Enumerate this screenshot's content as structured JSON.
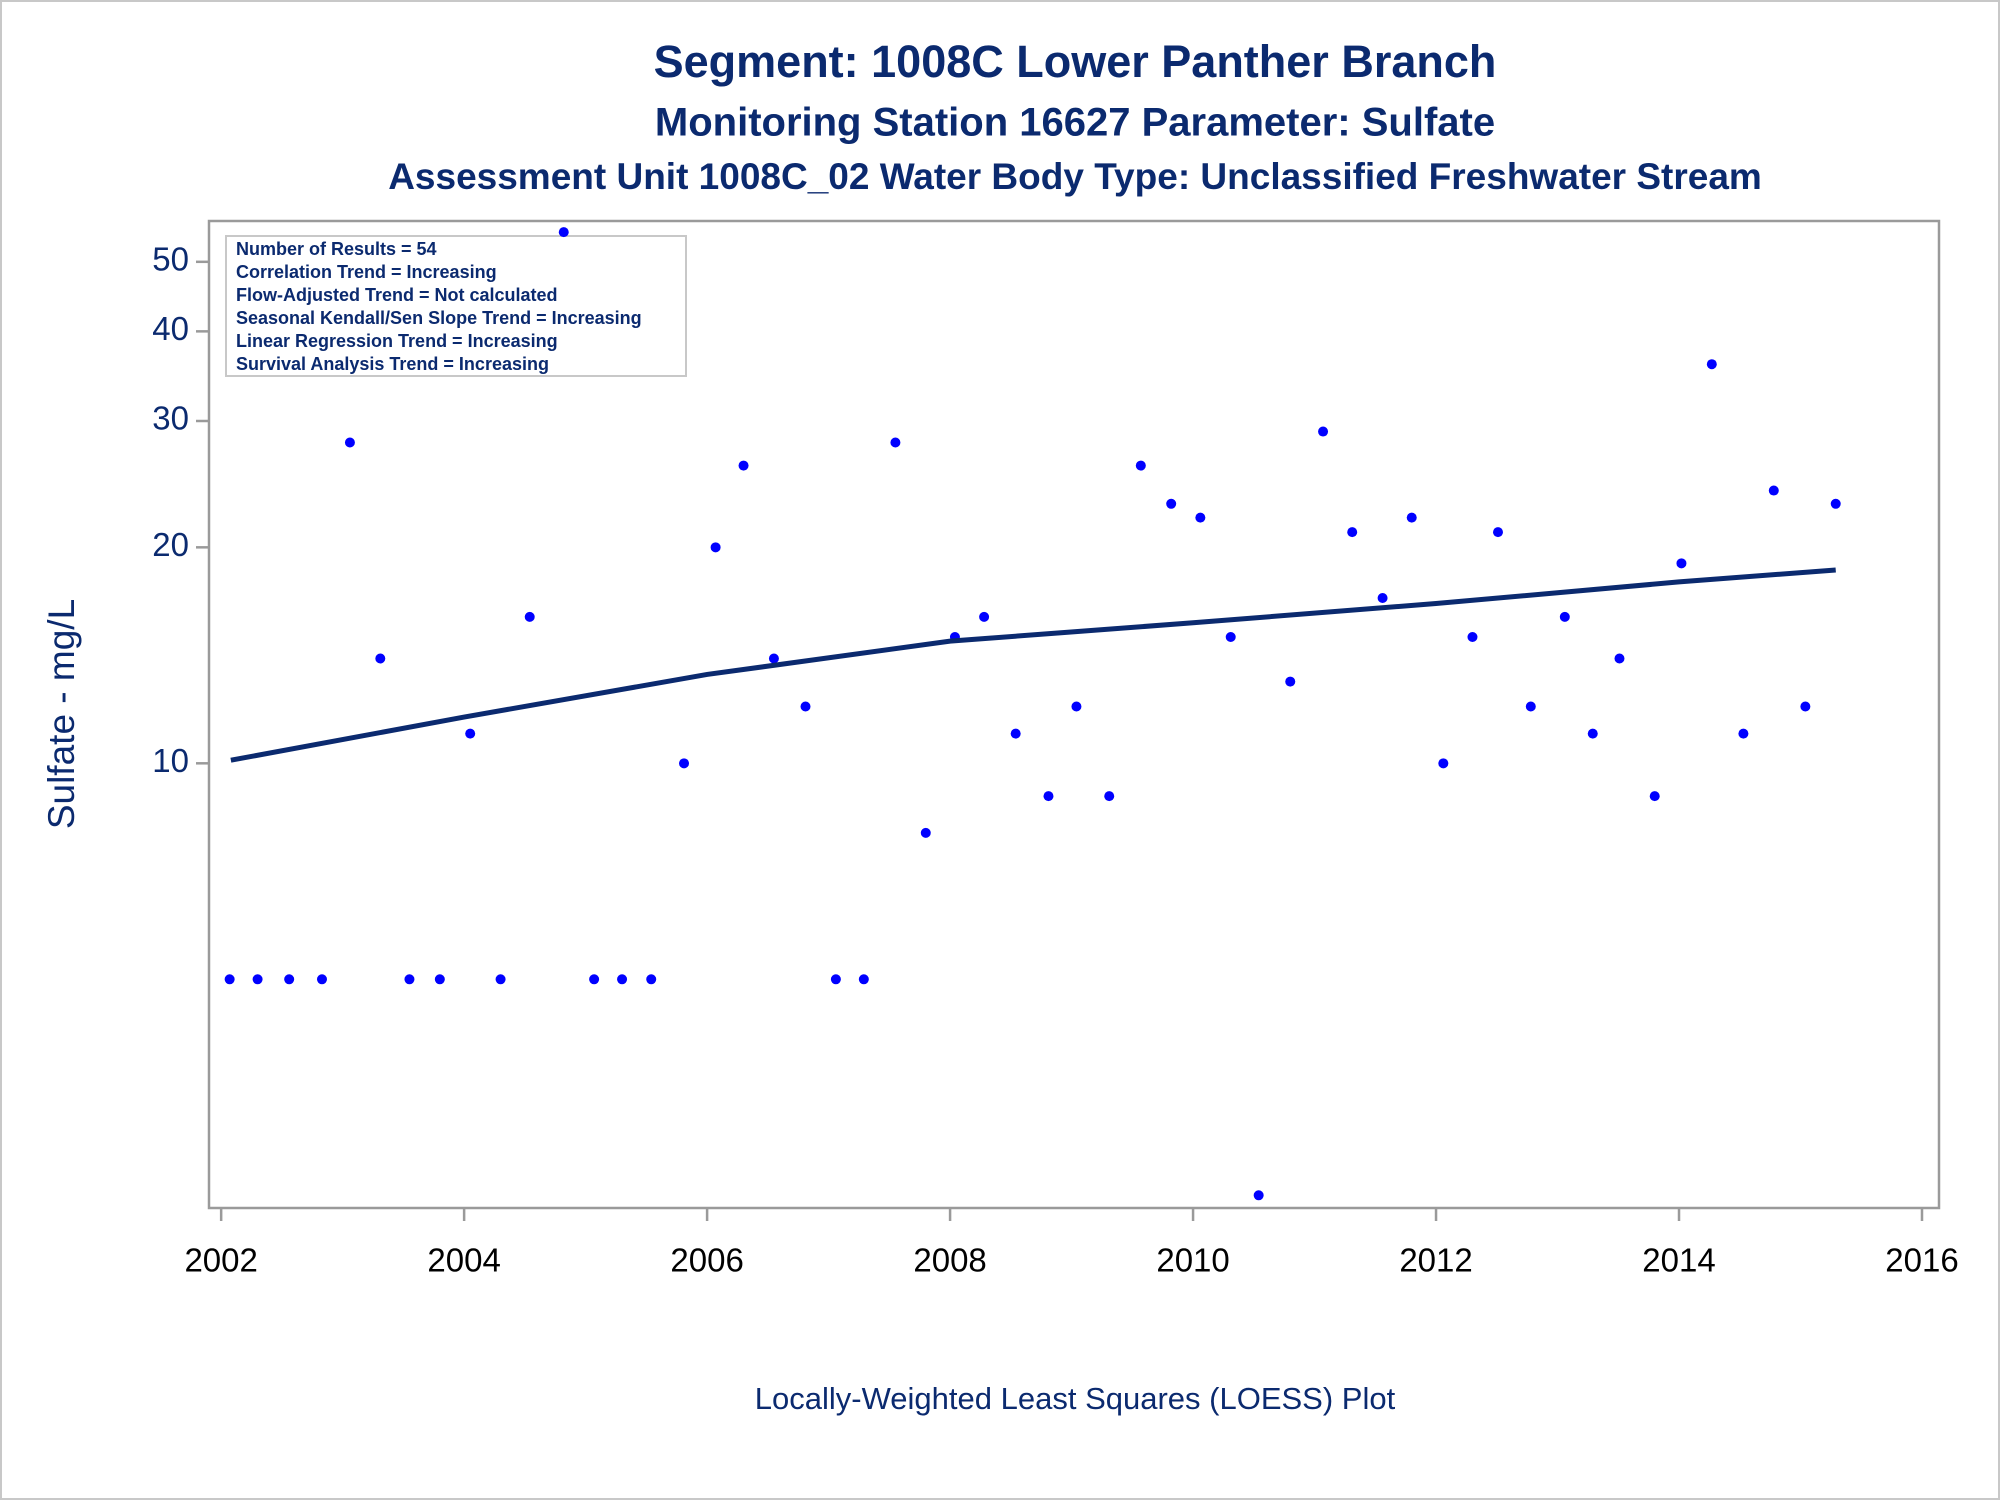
{
  "chart_data": {
    "type": "scatter",
    "title": "Segment: 1008C  Lower Panther Branch",
    "subtitles": [
      "Monitoring Station 16627 Parameter: Sulfate",
      "Assessment Unit 1008C_02   Water Body Type: Unclassified Freshwater Stream"
    ],
    "y_label": "Sulfate - mg/L",
    "caption": "Locally-Weighted Least Squares (LOESS) Plot",
    "annotations": [
      "Number of Results = 54",
      "Correlation Trend = Increasing",
      "Flow-Adjusted Trend = Not calculated",
      "Seasonal Kendall/Sen Slope Trend = Increasing",
      "Linear Regression Trend = Increasing",
      "Survival Analysis Trend = Increasing"
    ],
    "xlim": [
      2001.9,
      2016.14
    ],
    "xticks": [
      2002,
      2004,
      2006,
      2008,
      2010,
      2012,
      2014,
      2016
    ],
    "ylim": [
      2.4,
      57
    ],
    "yticks": [
      10,
      20,
      30,
      40,
      50
    ],
    "y_log_scale": true,
    "series": [
      {
        "type": "scatter",
        "color": "#0000ff",
        "x": [
          2002.07,
          2002.3,
          2002.56,
          2002.83,
          2003.06,
          2003.31,
          2003.55,
          2003.8,
          2004.05,
          2004.3,
          2004.54,
          2004.82,
          2005.07,
          2005.3,
          2005.54,
          2005.81,
          2006.07,
          2006.3,
          2006.55,
          2006.81,
          2007.06,
          2007.29,
          2007.55,
          2007.8,
          2008.04,
          2008.28,
          2008.54,
          2008.81,
          2009.04,
          2009.31,
          2009.57,
          2009.82,
          2010.06,
          2010.31,
          2010.54,
          2010.8,
          2011.07,
          2011.31,
          2011.56,
          2011.8,
          2012.06,
          2012.3,
          2012.51,
          2012.78,
          2013.06,
          2013.29,
          2013.51,
          2013.8,
          2014.02,
          2014.27,
          2014.53,
          2014.78,
          2015.04,
          2015.29
        ],
        "values": [
          5,
          5,
          5,
          5,
          28,
          14,
          5,
          5,
          11,
          5,
          16,
          55,
          5,
          5,
          5,
          10,
          20,
          26,
          14,
          12,
          5,
          5,
          28,
          8,
          15,
          16,
          11,
          9,
          12,
          9,
          26,
          23,
          22,
          15,
          2.5,
          13,
          29,
          21,
          17,
          22,
          10,
          15,
          21,
          12,
          16,
          11,
          14,
          9,
          19,
          36,
          11,
          24,
          12,
          23
        ]
      },
      {
        "type": "line",
        "color": "#0b2a6f",
        "x": [
          2002.08,
          2004,
          2006,
          2008,
          2010,
          2012,
          2014,
          2015.29
        ],
        "values": [
          10.1,
          11.6,
          13.3,
          14.8,
          15.7,
          16.7,
          17.9,
          18.6
        ]
      }
    ]
  }
}
